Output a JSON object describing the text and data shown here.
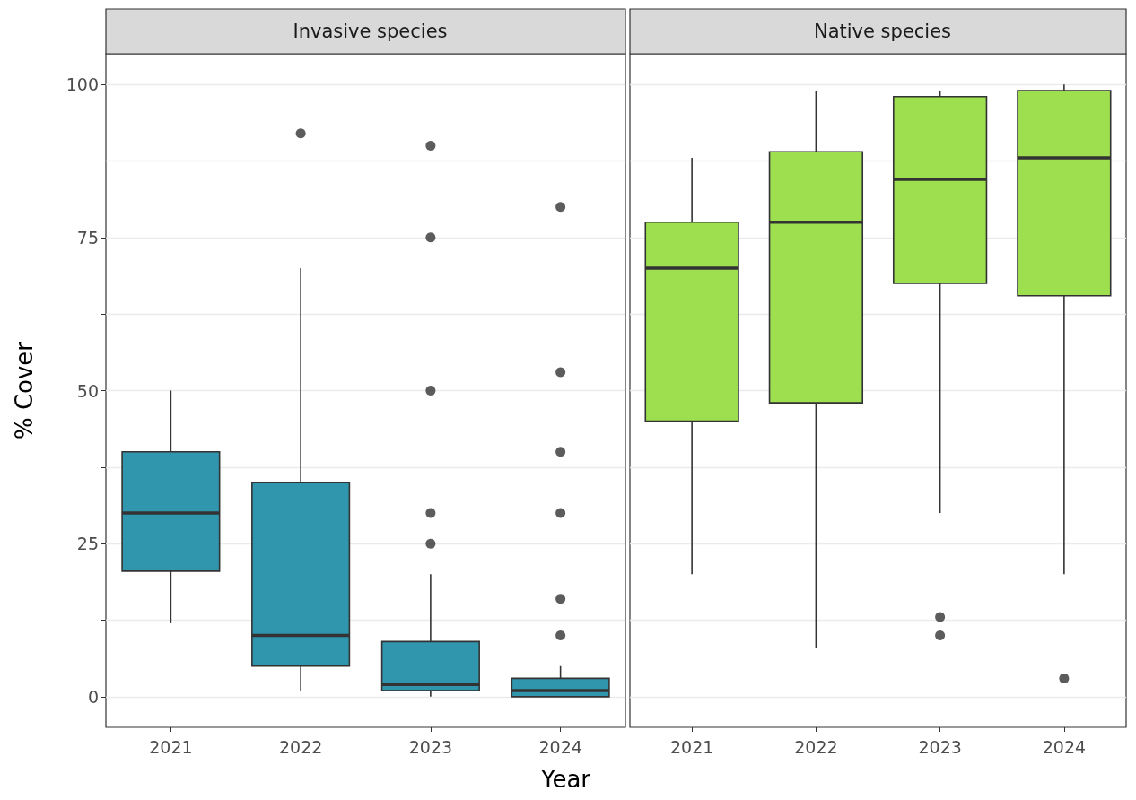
{
  "chart_data": [
    {
      "type": "box",
      "title": "Invasive species",
      "xlabel": "Year",
      "ylabel": "% Cover",
      "categories": [
        "2021",
        "2022",
        "2023",
        "2024"
      ],
      "series": [
        {
          "color": "#3096ae",
          "boxes": [
            {
              "low": 12,
              "q1": 20.5,
              "median": 30,
              "q3": 40,
              "high": 50
            },
            {
              "low": 1,
              "q1": 5,
              "median": 10,
              "q3": 35,
              "high": 70,
              "outliers": [
                92
              ]
            },
            {
              "low": 0,
              "q1": 1,
              "median": 2,
              "q3": 9,
              "high": 20,
              "outliers": [
                25,
                30,
                50,
                75,
                90
              ]
            },
            {
              "low": 0,
              "q1": 0,
              "median": 1,
              "q3": 3,
              "high": 5,
              "outliers": [
                10,
                16,
                30,
                40,
                53,
                80
              ]
            }
          ]
        }
      ],
      "ylim": [
        -5,
        105
      ],
      "yticks": [
        0,
        {
          "value": 12.5,
          "label": null
        },
        25,
        {
          "value": 37.5,
          "label": null
        },
        50,
        {
          "value": 62.5,
          "label": null
        },
        75,
        {
          "value": 87.5,
          "label": null
        },
        100
      ],
      "grid": true
    },
    {
      "type": "box",
      "title": "Native species",
      "categories": [
        "2021",
        "2022",
        "2023",
        "2024"
      ],
      "series": [
        {
          "color": "#9ddf4e",
          "boxes": [
            {
              "low": 20,
              "q1": 45,
              "median": 70,
              "q3": 77.5,
              "high": 88
            },
            {
              "low": 8,
              "q1": 48,
              "median": 77.5,
              "q3": 89,
              "high": 99
            },
            {
              "low": 30,
              "q1": 67.5,
              "median": 84.5,
              "q3": 98,
              "high": 99,
              "outliers": [
                10,
                13
              ]
            },
            {
              "low": 20,
              "q1": 65.5,
              "median": 88,
              "q3": 99,
              "high": 100,
              "outliers": [
                3
              ]
            }
          ]
        }
      ],
      "ylim": [
        -5,
        105
      ],
      "yticks": [
        0,
        {
          "value": 12.5,
          "label": null
        },
        25,
        {
          "value": 37.5,
          "label": null
        },
        50,
        {
          "value": 62.5,
          "label": null
        },
        75,
        {
          "value": 87.5,
          "label": null
        },
        100
      ],
      "grid": true,
      "tick_labels": "x"
    }
  ]
}
